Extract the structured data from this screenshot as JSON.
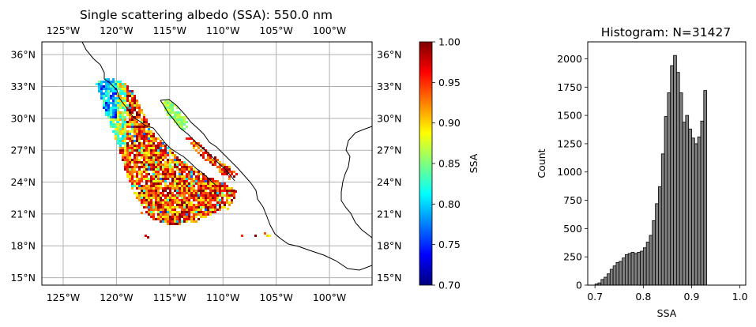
{
  "chart_data": [
    {
      "type": "heatmap",
      "title": "Single scattering albedo (SSA): 550.0 nm",
      "xlim": [
        -127.0,
        -96.0
      ],
      "ylim": [
        14.3,
        37.2
      ],
      "x_ticks": [
        -125,
        -120,
        -115,
        -110,
        -105,
        -100
      ],
      "x_tick_labels": [
        "125°W",
        "120°W",
        "115°W",
        "110°W",
        "105°W",
        "100°W"
      ],
      "y_ticks": [
        15,
        18,
        21,
        24,
        27,
        30,
        33,
        36
      ],
      "y_tick_labels": [
        "15°N",
        "18°N",
        "21°N",
        "24°N",
        "27°N",
        "30°N",
        "33°N",
        "36°N"
      ],
      "grid": true,
      "colormap": "jet",
      "colorbar": {
        "label": "SSA",
        "range": [
          0.7,
          1.0
        ],
        "ticks": [
          0.7,
          0.75,
          0.8,
          0.85,
          0.9,
          0.95,
          1.0
        ],
        "tick_labels": [
          "0.70",
          "0.75",
          "0.80",
          "0.85",
          "0.90",
          "0.95",
          "1.00"
        ]
      },
      "colors": [
        "#00007f",
        "#0000ff",
        "#007fff",
        "#00ffff",
        "#7fff7f",
        "#ffff00",
        "#ff7f00",
        "#ff0000",
        "#7f0000"
      ]
    },
    {
      "type": "bar",
      "title": "Histogram: N=31427",
      "xlabel": "SSA",
      "ylabel": "Count",
      "xlim": [
        0.685,
        1.012
      ],
      "ylim": [
        0,
        2150
      ],
      "bin_start": 0.7,
      "bin_width": 0.00625,
      "values": [
        10,
        20,
        50,
        70,
        100,
        140,
        170,
        200,
        210,
        240,
        270,
        280,
        290,
        280,
        290,
        300,
        330,
        380,
        440,
        570,
        720,
        870,
        1160,
        1490,
        1700,
        1940,
        2030,
        1880,
        1700,
        1440,
        1500,
        1380,
        1300,
        1250,
        1310,
        1450,
        1720
      ],
      "x_ticks": [
        0.7,
        0.8,
        0.9,
        1.0
      ],
      "x_tick_labels": [
        "0.7",
        "0.8",
        "0.9",
        "1.0"
      ],
      "y_ticks": [
        0,
        250,
        500,
        750,
        1000,
        1250,
        1500,
        1750,
        2000
      ],
      "y_tick_labels": [
        "0",
        "250",
        "500",
        "750",
        "1000",
        "1250",
        "1500",
        "1750",
        "2000"
      ],
      "bar_color": "#808080",
      "edge_color": "#000000"
    }
  ]
}
